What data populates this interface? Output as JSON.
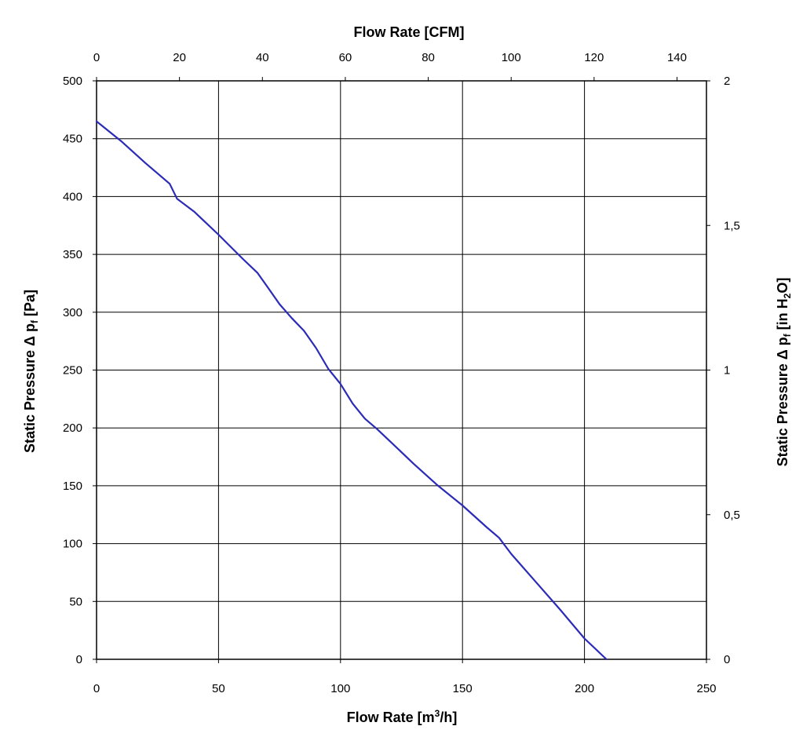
{
  "chart_data": {
    "type": "line",
    "x_bottom": {
      "label_main": "Flow Rate [m",
      "label_sup": "3",
      "label_end": "/h]",
      "range": [
        0,
        250
      ],
      "ticks": [
        "0",
        "50",
        "100",
        "150",
        "200",
        "250"
      ]
    },
    "x_top": {
      "label": "Flow Rate [CFM]",
      "range": [
        0,
        147.1
      ],
      "ticks": [
        "0",
        "20",
        "40",
        "60",
        "80",
        "100",
        "120",
        "140"
      ]
    },
    "y_left": {
      "label_main": "Static Pressure Δ p",
      "label_sub": "f",
      "label_end": " [Pa]",
      "range": [
        0,
        500
      ],
      "ticks": [
        "0",
        "50",
        "100",
        "150",
        "200",
        "250",
        "300",
        "350",
        "400",
        "450",
        "500"
      ]
    },
    "y_right": {
      "label_main": "Static Pressure Δ p",
      "label_sub": "f",
      "label_mid": " [in H",
      "label_sub2": "2",
      "label_end": "O]",
      "range": [
        0,
        2
      ],
      "ticks": [
        "0",
        "0,5",
        "1",
        "1,5",
        "2"
      ]
    },
    "grid": true,
    "line_color": "#2b2bb8",
    "series": [
      {
        "x": [
          0,
          10,
          20,
          30,
          33,
          40,
          50,
          60,
          66,
          70,
          75,
          80,
          85,
          90,
          95,
          100,
          105,
          110,
          115,
          120,
          130,
          140,
          150,
          160,
          165,
          170,
          180,
          190,
          200,
          209
        ],
        "y": [
          465,
          448,
          429,
          411,
          398,
          387,
          367,
          346,
          334,
          322,
          307,
          295,
          284,
          269,
          251,
          238,
          221,
          208,
          199,
          189,
          169,
          150,
          133,
          114,
          105,
          91,
          67,
          43,
          18,
          0
        ]
      }
    ]
  }
}
